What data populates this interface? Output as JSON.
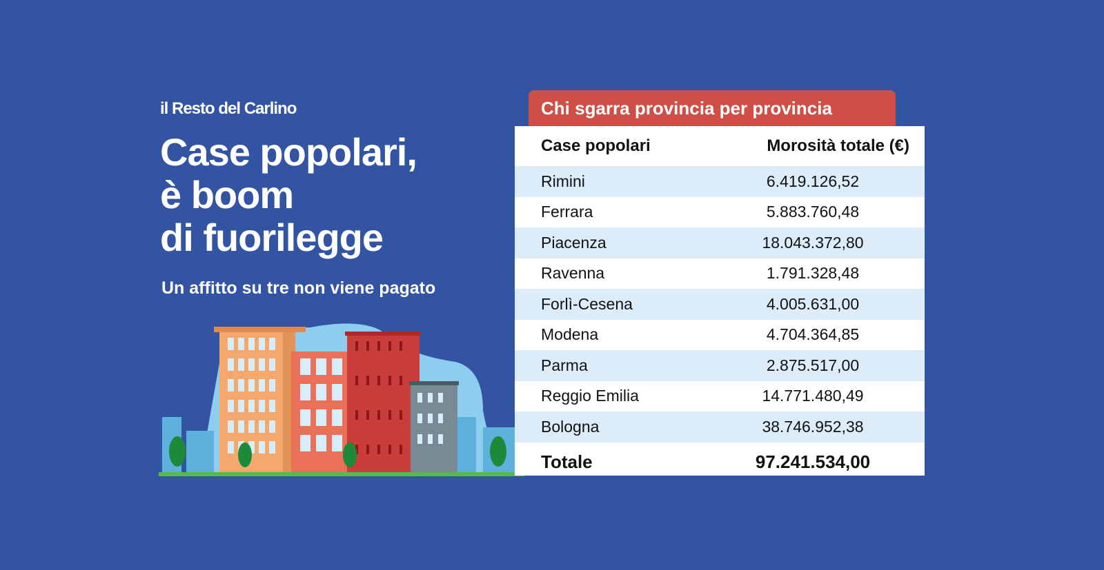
{
  "brand": "il Resto del Carlino",
  "headline": [
    "Case popolari,",
    "è boom",
    "di fuorilegge"
  ],
  "subtitle": "Un affitto su tre non viene pagato",
  "table": {
    "tab_title": "Chi sgarra provincia per provincia",
    "headers": [
      "Case popolari",
      "Morosità totale (€)"
    ],
    "rows": [
      {
        "name": "Rimini",
        "value": "6.419.126,52"
      },
      {
        "name": "Ferrara",
        "value": "5.883.760,48"
      },
      {
        "name": "Piacenza",
        "value": "18.043.372,80"
      },
      {
        "name": "Ravenna",
        "value": "1.791.328,48"
      },
      {
        "name": "Forlì-Cesena",
        "value": "4.005.631,00"
      },
      {
        "name": "Modena",
        "value": "4.704.364,85"
      },
      {
        "name": "Parma",
        "value": "2.875.517,00"
      },
      {
        "name": "Reggio Emilia",
        "value": "14.771.480,49"
      },
      {
        "name": "Bologna",
        "value": "38.746.952,38"
      }
    ],
    "total": {
      "name": "Totale",
      "value": "97.241.534,00"
    }
  },
  "colors": {
    "background": "#3353a3",
    "tab": "#cf4f47",
    "row_alt": "#dcedf9"
  }
}
